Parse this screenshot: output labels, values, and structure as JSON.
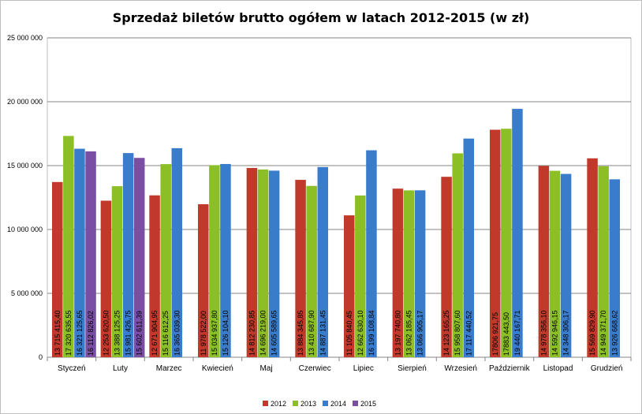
{
  "chart_data": {
    "type": "bar",
    "title": "Sprzedaż biletów brutto ogółem w latach 2012-2015 (w zł)",
    "xlabel": "",
    "ylabel": "",
    "ylim": [
      0,
      25000000
    ],
    "yticks": [
      {
        "value": 0,
        "label": "0"
      },
      {
        "value": 5000000,
        "label": "5 000 000"
      },
      {
        "value": 10000000,
        "label": "10 000 000"
      },
      {
        "value": 15000000,
        "label": "15 000 000"
      },
      {
        "value": 20000000,
        "label": "20 000 000"
      },
      {
        "value": 25000000,
        "label": "25 000 000"
      }
    ],
    "grid": true,
    "legend_position": "bottom",
    "categories": [
      "Styczeń",
      "Luty",
      "Marzec",
      "Kwiecień",
      "Maj",
      "Czerwiec",
      "Lipiec",
      "Sierpień",
      "Wrzesień",
      "Październik",
      "Listopad",
      "Grudzień"
    ],
    "series": [
      {
        "name": "2012",
        "color": "#c0392b",
        "values": [
          13715415.4,
          12253620.5,
          12671904.95,
          11978522.0,
          14812230.85,
          13884345.85,
          11105840.45,
          13197740.8,
          14123165.25,
          17806921.75,
          14978356.1,
          15569829.9
        ],
        "labels": [
          "13 715 415,40",
          "12 253 620,50",
          "12 671 904,95",
          "11 978 522,00",
          "14 812 230,85",
          "13 884 345,85",
          "11 105 840,45",
          "13 197 740,80",
          "14 123 165,25",
          "17806 921,75",
          "14 978 356,10",
          "15 569 829,90"
        ]
      },
      {
        "name": "2013",
        "color": "#8cbf26",
        "values": [
          17320635.55,
          13388125.25,
          15116612.25,
          15034937.8,
          14696219.0,
          13410687.9,
          12662630.1,
          13062185.45,
          15958807.6,
          17883443.5,
          14592946.15,
          14949371.7
        ],
        "labels": [
          "17 320 635,55",
          "13 388 125,25",
          "15 116 612,25",
          "15 034 937,80",
          "14 696 219,00",
          "13 410 687,90",
          "12 662 630,10",
          "13 062 185,45",
          "15 958 807,60",
          "17883 443,50",
          "14 592 946,15",
          "14 949 371,70"
        ]
      },
      {
        "name": "2014",
        "color": "#3a7ccc",
        "values": [
          16321125.65,
          15981426.75,
          16365039.3,
          15126104.1,
          14605589.65,
          14887131.45,
          16199108.84,
          13066905.17,
          17117440.52,
          19440167.71,
          14348306.17,
          13926668.62
        ],
        "labels": [
          "16 321 125,65",
          "15 981 426,75",
          "16 365 039,30",
          "15 126 104,10",
          "14 605 589,65",
          "14 887 131,45",
          "16 199 108,84",
          "13 066 905,17",
          "17 117 440,52",
          "19 440 167,71",
          "14 348 306,17",
          "13 926 668,62"
        ]
      },
      {
        "name": "2015",
        "color": "#7a4fa3",
        "values": [
          16112826.02,
          15602611.39,
          null,
          null,
          null,
          null,
          null,
          null,
          null,
          null,
          null,
          null
        ],
        "labels": [
          "16 112 826,02",
          "15 602 611,39",
          "",
          "",
          "",
          "",
          "",
          "",
          "",
          "",
          "",
          ""
        ]
      }
    ]
  }
}
